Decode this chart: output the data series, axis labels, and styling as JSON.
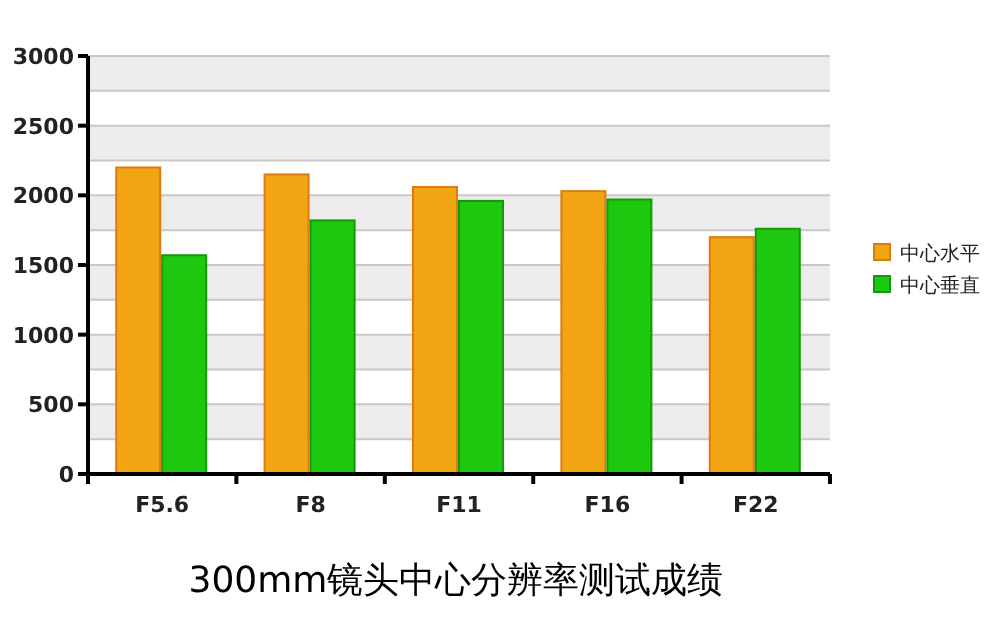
{
  "chart_data": {
    "type": "bar",
    "title": "300mm镜头中心分辨率测试成绩",
    "categories": [
      "F5.6",
      "F8",
      "F11",
      "F16",
      "F22"
    ],
    "series": [
      {
        "name": "中心水平",
        "color": "#f2a512",
        "values": [
          2200,
          2150,
          2060,
          2030,
          1700
        ]
      },
      {
        "name": "中心垂直",
        "color": "#1ec80e",
        "values": [
          1570,
          1820,
          1960,
          1970,
          1760
        ]
      }
    ],
    "ylim": [
      0,
      3000
    ],
    "yticks": [
      0,
      {
        "value": 250,
        "label": null
      },
      500,
      {
        "value": 750,
        "label": null
      },
      1000,
      {
        "value": 1250,
        "label": null
      },
      1500,
      {
        "value": 1750,
        "label": null
      },
      2000,
      {
        "value": 2250,
        "label": null
      },
      2500,
      {
        "value": 2750,
        "label": null
      },
      3000
    ],
    "grid": "y",
    "legend": "right"
  }
}
